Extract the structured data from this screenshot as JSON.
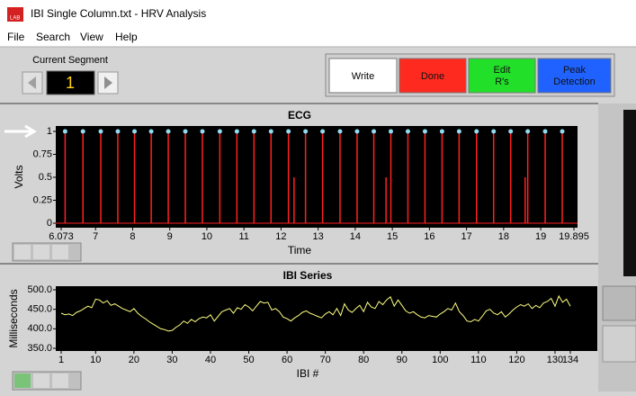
{
  "window": {
    "title": "IBI Single Column.txt - HRV Analysis"
  },
  "menu": [
    "File",
    "Search",
    "View",
    "Help"
  ],
  "current_segment": {
    "label": "Current Segment",
    "value": 1
  },
  "buttons": [
    {
      "label": "Write",
      "color": "#ffffff"
    },
    {
      "label": "Done",
      "color": "#ff2a1f"
    },
    {
      "label": "Edit R's",
      "color": "#22e02a"
    },
    {
      "label": "Peak Detection",
      "color": "#1f62ff"
    }
  ],
  "ecg_chart": {
    "type": "spikes",
    "title": "ECG",
    "y_label": "Volts",
    "x_label": "Time",
    "xlim": [
      6.073,
      19.895
    ],
    "ylim": [
      0,
      1
    ],
    "xticks": [
      6.073,
      7,
      8,
      9,
      10,
      11,
      12,
      13,
      14,
      15,
      16,
      17,
      18,
      19,
      19.895
    ],
    "yticks": [
      0,
      0.25,
      0.5,
      0.75,
      1
    ],
    "color": "#ff2020",
    "marker_color": "#8fdcf0",
    "peaks": {
      "x": [
        6.18,
        6.66,
        7.14,
        7.6,
        8.05,
        8.5,
        8.96,
        9.42,
        9.88,
        10.35,
        10.81,
        11.27,
        11.73,
        12.2,
        12.66,
        13.12,
        13.59,
        14.05,
        14.5,
        14.96,
        15.42,
        15.88,
        16.34,
        16.8,
        17.27,
        17.73,
        18.19,
        18.65,
        19.12,
        19.58
      ],
      "values": [
        1,
        1,
        1,
        1,
        1,
        1,
        1,
        1,
        1,
        1,
        1,
        1,
        1,
        1,
        1,
        1,
        1,
        1,
        1,
        1,
        1,
        1,
        1,
        1,
        1,
        1,
        1,
        1,
        1,
        1
      ]
    },
    "artifacts": {
      "x": [
        12.35,
        14.83,
        18.58
      ],
      "values": [
        0.5,
        0.5,
        0.5
      ]
    }
  },
  "ibi_chart": {
    "type": "line",
    "title": "IBI Series",
    "y_label": "Milliseconds",
    "x_label": "IBI #",
    "xlim": [
      1,
      134
    ],
    "ylim": [
      350,
      500
    ],
    "xticks": [
      1,
      10,
      20,
      30,
      40,
      50,
      60,
      70,
      80,
      90,
      100,
      110,
      120,
      130,
      134
    ],
    "yticks": [
      {
        "value": 350,
        "label": "350.0"
      },
      {
        "value": 400,
        "label": "400.0"
      },
      {
        "value": 450,
        "label": "450.0"
      },
      {
        "value": 500,
        "label": "500.0"
      }
    ],
    "color": "#ffff80",
    "x": [
      1,
      2,
      3,
      4,
      5,
      6,
      7,
      8,
      9,
      10,
      11,
      12,
      13,
      14,
      15,
      16,
      17,
      18,
      19,
      20,
      21,
      22,
      23,
      24,
      25,
      26,
      27,
      28,
      29,
      30,
      31,
      32,
      33,
      34,
      35,
      36,
      37,
      38,
      39,
      40,
      41,
      42,
      43,
      44,
      45,
      46,
      47,
      48,
      49,
      50,
      51,
      52,
      53,
      54,
      55,
      56,
      57,
      58,
      59,
      60,
      61,
      62,
      63,
      64,
      65,
      66,
      67,
      68,
      69,
      70,
      71,
      72,
      73,
      74,
      75,
      76,
      77,
      78,
      79,
      80,
      81,
      82,
      83,
      84,
      85,
      86,
      87,
      88,
      89,
      90,
      91,
      92,
      93,
      94,
      95,
      96,
      97,
      98,
      99,
      100,
      101,
      102,
      103,
      104,
      105,
      106,
      107,
      108,
      109,
      110,
      111,
      112,
      113,
      114,
      115,
      116,
      117,
      118,
      119,
      120,
      121,
      122,
      123,
      124,
      125,
      126,
      127,
      128,
      129,
      130,
      131,
      132,
      133,
      134
    ],
    "values": [
      440,
      436,
      438,
      434,
      442,
      446,
      452,
      458,
      454,
      476,
      474,
      466,
      472,
      460,
      464,
      458,
      452,
      448,
      444,
      452,
      440,
      432,
      426,
      418,
      412,
      406,
      400,
      398,
      394,
      396,
      404,
      410,
      420,
      414,
      424,
      418,
      426,
      430,
      428,
      436,
      420,
      432,
      444,
      448,
      452,
      440,
      454,
      450,
      462,
      456,
      446,
      458,
      470,
      466,
      468,
      448,
      452,
      444,
      430,
      426,
      420,
      428,
      434,
      442,
      446,
      440,
      436,
      432,
      428,
      438,
      444,
      436,
      452,
      434,
      464,
      448,
      442,
      452,
      460,
      444,
      468,
      456,
      452,
      470,
      462,
      474,
      482,
      458,
      474,
      460,
      446,
      440,
      444,
      436,
      430,
      428,
      434,
      432,
      430,
      438,
      444,
      452,
      448,
      466,
      444,
      434,
      420,
      418,
      424,
      420,
      432,
      446,
      450,
      440,
      436,
      444,
      430,
      438,
      448,
      456,
      462,
      458,
      464,
      452,
      460,
      454,
      466,
      470,
      478,
      458,
      484,
      468,
      476,
      458
    ]
  }
}
